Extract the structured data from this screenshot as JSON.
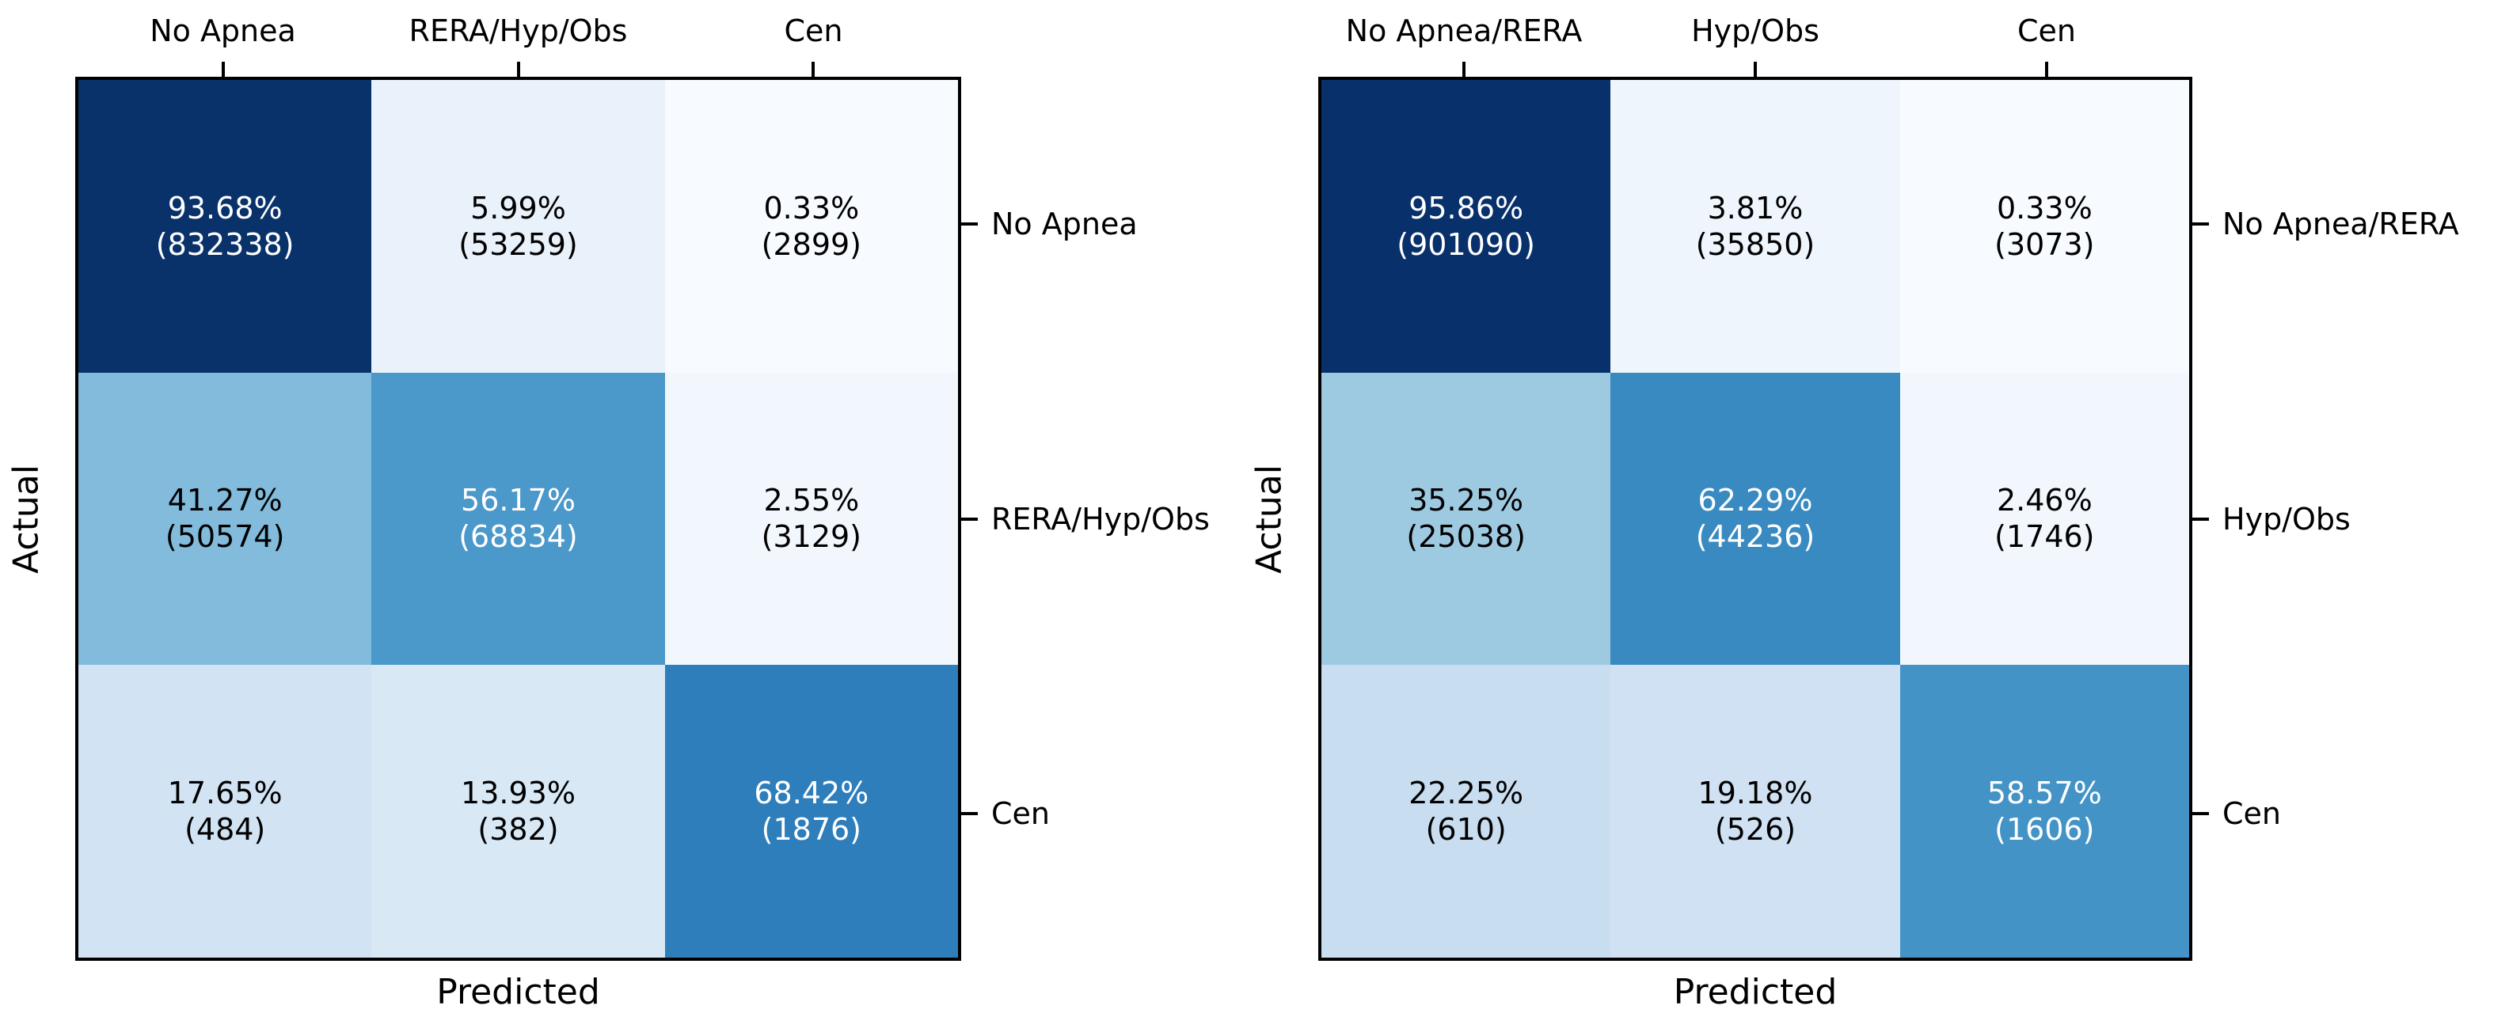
{
  "figure": {
    "background": "#ffffff",
    "border_color": "#000000",
    "text_color": "#000000",
    "colormap": "Blues"
  },
  "panels": [
    {
      "xlabel": "Predicted",
      "ylabel": "Actual",
      "columns": [
        "No Apnea",
        "RERA/Hyp/Obs",
        "Cen"
      ],
      "rows": [
        "No Apnea",
        "RERA/Hyp/Obs",
        "Cen"
      ],
      "cells": [
        {
          "pct": "93.68%",
          "count": "(832338)",
          "bg": "#09326b",
          "fg": "#ffffff"
        },
        {
          "pct": "5.99%",
          "count": "(53259)",
          "bg": "#e9f1fa",
          "fg": "#000000"
        },
        {
          "pct": "0.33%",
          "count": "(2899)",
          "bg": "#f7fbff",
          "fg": "#000000"
        },
        {
          "pct": "41.27%",
          "count": "(50574)",
          "bg": "#82bbdb",
          "fg": "#000000"
        },
        {
          "pct": "56.17%",
          "count": "(68834)",
          "bg": "#4b98ca",
          "fg": "#ffffff"
        },
        {
          "pct": "2.55%",
          "count": "(3129)",
          "bg": "#f1f7fd",
          "fg": "#000000"
        },
        {
          "pct": "17.65%",
          "count": "(484)",
          "bg": "#d2e3f3",
          "fg": "#000000"
        },
        {
          "pct": "13.93%",
          "count": "(382)",
          "bg": "#d9e8f5",
          "fg": "#000000"
        },
        {
          "pct": "68.42%",
          "count": "(1876)",
          "bg": "#2e7ebc",
          "fg": "#ffffff"
        }
      ]
    },
    {
      "xlabel": "Predicted",
      "ylabel": "Actual",
      "columns": [
        "No Apnea/RERA",
        "Hyp/Obs",
        "Cen"
      ],
      "rows": [
        "No Apnea/RERA",
        "Hyp/Obs",
        "Cen"
      ],
      "cells": [
        {
          "pct": "95.86%",
          "count": "(901090)",
          "bg": "#08306b",
          "fg": "#ffffff"
        },
        {
          "pct": "3.81%",
          "count": "(35850)",
          "bg": "#eef5fc",
          "fg": "#000000"
        },
        {
          "pct": "0.33%",
          "count": "(3073)",
          "bg": "#f7fbff",
          "fg": "#000000"
        },
        {
          "pct": "35.25%",
          "count": "(25038)",
          "bg": "#9ecae1",
          "fg": "#000000"
        },
        {
          "pct": "62.29%",
          "count": "(44236)",
          "bg": "#3a8ac2",
          "fg": "#ffffff"
        },
        {
          "pct": "2.46%",
          "count": "(1746)",
          "bg": "#f1f7fd",
          "fg": "#000000"
        },
        {
          "pct": "22.25%",
          "count": "(610)",
          "bg": "#c9ddf0",
          "fg": "#000000"
        },
        {
          "pct": "19.18%",
          "count": "(526)",
          "bg": "#cfe1f2",
          "fg": "#000000"
        },
        {
          "pct": "58.57%",
          "count": "(1606)",
          "bg": "#4493c7",
          "fg": "#ffffff"
        }
      ]
    }
  ],
  "chart_data": [
    {
      "type": "heatmap",
      "subtype": "confusion-matrix",
      "title": "",
      "xlabel": "Predicted",
      "ylabel": "Actual",
      "x_categories": [
        "No Apnea",
        "RERA/Hyp/Obs",
        "Cen"
      ],
      "y_categories": [
        "No Apnea",
        "RERA/Hyp/Obs",
        "Cen"
      ],
      "percent_rows": [
        [
          93.68,
          5.99,
          0.33
        ],
        [
          41.27,
          56.17,
          2.55
        ],
        [
          17.65,
          13.93,
          68.42
        ]
      ],
      "count_rows": [
        [
          832338,
          53259,
          2899
        ],
        [
          50574,
          68834,
          3129
        ],
        [
          484,
          382,
          1876
        ]
      ],
      "cell_label_format": "percent newline (count)",
      "colormap": "Blues",
      "grid": false,
      "legend": false
    },
    {
      "type": "heatmap",
      "subtype": "confusion-matrix",
      "title": "",
      "xlabel": "Predicted",
      "ylabel": "Actual",
      "x_categories": [
        "No Apnea/RERA",
        "Hyp/Obs",
        "Cen"
      ],
      "y_categories": [
        "No Apnea/RERA",
        "Hyp/Obs",
        "Cen"
      ],
      "percent_rows": [
        [
          95.86,
          3.81,
          0.33
        ],
        [
          35.25,
          62.29,
          2.46
        ],
        [
          22.25,
          19.18,
          58.57
        ]
      ],
      "count_rows": [
        [
          901090,
          35850,
          3073
        ],
        [
          25038,
          44236,
          1746
        ],
        [
          610,
          526,
          1606
        ]
      ],
      "cell_label_format": "percent newline (count)",
      "colormap": "Blues",
      "grid": false,
      "legend": false
    }
  ]
}
